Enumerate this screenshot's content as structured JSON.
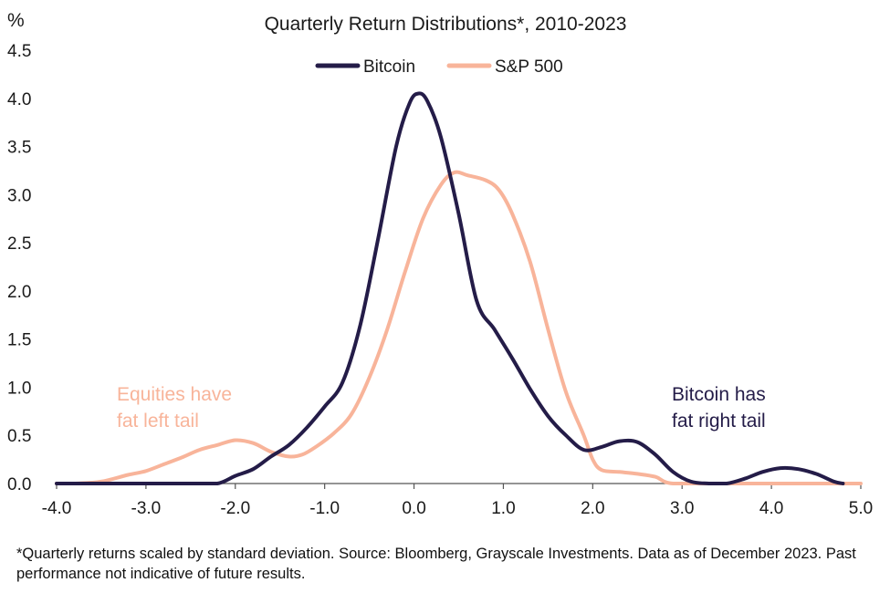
{
  "colors": {
    "bitcoin": "#241c48",
    "sp500": "#f8b49a",
    "axis": "#555555",
    "text": "#1a1a1a"
  },
  "chart_data": {
    "type": "line",
    "title": "Quarterly Return Distributions*, 2010-2023",
    "ylabel": "%",
    "xlabel": "",
    "xlim": [
      -4.0,
      5.0
    ],
    "ylim": [
      0.0,
      4.5
    ],
    "x_ticks": [
      "-4.0",
      "-3.0",
      "-2.0",
      "-1.0",
      "0.0",
      "1.0",
      "2.0",
      "3.0",
      "4.0",
      "5.0"
    ],
    "y_ticks": [
      "0.0",
      "0.5",
      "1.0",
      "1.5",
      "2.0",
      "2.5",
      "3.0",
      "3.5",
      "4.0",
      "4.5"
    ],
    "grid": false,
    "legend_position": "top-center",
    "series": [
      {
        "name": "Bitcoin",
        "points": [
          [
            -4.0,
            0.0
          ],
          [
            -3.5,
            0.0
          ],
          [
            -3.0,
            0.0
          ],
          [
            -2.5,
            0.0
          ],
          [
            -2.2,
            0.0
          ],
          [
            -2.0,
            0.08
          ],
          [
            -1.8,
            0.15
          ],
          [
            -1.6,
            0.28
          ],
          [
            -1.4,
            0.4
          ],
          [
            -1.2,
            0.58
          ],
          [
            -1.0,
            0.8
          ],
          [
            -0.8,
            1.05
          ],
          [
            -0.6,
            1.65
          ],
          [
            -0.4,
            2.55
          ],
          [
            -0.2,
            3.5
          ],
          [
            -0.05,
            3.95
          ],
          [
            0.05,
            4.05
          ],
          [
            0.15,
            3.97
          ],
          [
            0.3,
            3.6
          ],
          [
            0.5,
            2.8
          ],
          [
            0.7,
            1.9
          ],
          [
            0.9,
            1.6
          ],
          [
            1.1,
            1.3
          ],
          [
            1.3,
            0.98
          ],
          [
            1.5,
            0.7
          ],
          [
            1.7,
            0.5
          ],
          [
            1.9,
            0.35
          ],
          [
            2.1,
            0.38
          ],
          [
            2.3,
            0.44
          ],
          [
            2.5,
            0.43
          ],
          [
            2.7,
            0.3
          ],
          [
            2.9,
            0.12
          ],
          [
            3.1,
            0.02
          ],
          [
            3.3,
            0.0
          ],
          [
            3.5,
            0.0
          ],
          [
            3.7,
            0.05
          ],
          [
            3.9,
            0.12
          ],
          [
            4.1,
            0.16
          ],
          [
            4.3,
            0.15
          ],
          [
            4.5,
            0.1
          ],
          [
            4.7,
            0.02
          ],
          [
            4.8,
            0.0
          ]
        ]
      },
      {
        "name": "S&P 500",
        "points": [
          [
            -4.0,
            0.0
          ],
          [
            -3.8,
            0.0
          ],
          [
            -3.5,
            0.02
          ],
          [
            -3.2,
            0.09
          ],
          [
            -3.0,
            0.13
          ],
          [
            -2.8,
            0.2
          ],
          [
            -2.6,
            0.27
          ],
          [
            -2.4,
            0.35
          ],
          [
            -2.2,
            0.4
          ],
          [
            -2.0,
            0.45
          ],
          [
            -1.8,
            0.42
          ],
          [
            -1.6,
            0.33
          ],
          [
            -1.4,
            0.28
          ],
          [
            -1.25,
            0.3
          ],
          [
            -1.1,
            0.38
          ],
          [
            -0.9,
            0.52
          ],
          [
            -0.7,
            0.72
          ],
          [
            -0.5,
            1.1
          ],
          [
            -0.3,
            1.6
          ],
          [
            -0.1,
            2.2
          ],
          [
            0.1,
            2.75
          ],
          [
            0.3,
            3.1
          ],
          [
            0.45,
            3.23
          ],
          [
            0.6,
            3.2
          ],
          [
            0.8,
            3.15
          ],
          [
            0.95,
            3.05
          ],
          [
            1.1,
            2.8
          ],
          [
            1.3,
            2.3
          ],
          [
            1.5,
            1.6
          ],
          [
            1.7,
            0.95
          ],
          [
            1.9,
            0.5
          ],
          [
            2.0,
            0.25
          ],
          [
            2.1,
            0.14
          ],
          [
            2.3,
            0.12
          ],
          [
            2.5,
            0.1
          ],
          [
            2.7,
            0.07
          ],
          [
            2.9,
            0.0
          ],
          [
            3.5,
            0.0
          ],
          [
            4.0,
            0.0
          ],
          [
            5.0,
            0.0
          ]
        ]
      }
    ],
    "annotations": {
      "equities": [
        "Equities have",
        "fat left tail"
      ],
      "bitcoin": [
        "Bitcoin has",
        "fat right tail"
      ]
    }
  },
  "footnote": "*Quarterly returns scaled by standard deviation. Source: Bloomberg, Grayscale Investments. Data as of December 2023. Past performance not indicative of future results."
}
